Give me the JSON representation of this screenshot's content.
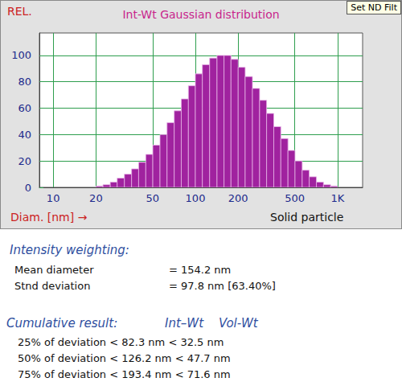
{
  "chart_data": {
    "type": "histogram",
    "title": "Int-Wt Gaussian distribution",
    "xlabel": "Diam. [nm] →",
    "ylabel": "REL.",
    "annotations": [
      "Solid particle"
    ],
    "bins": [
      20.0,
      22.4,
      25.2,
      28.2,
      31.7,
      35.6,
      39.9,
      44.8,
      50.2,
      56.4,
      63.2,
      71.0,
      79.6,
      89.3,
      100,
      112,
      126,
      142,
      159,
      178,
      200,
      224,
      252,
      283,
      317,
      356,
      399,
      448,
      502,
      564,
      632,
      710,
      796,
      893,
      1000
    ],
    "values": [
      1,
      2,
      4,
      7,
      10,
      14,
      19,
      25,
      32,
      40,
      49,
      58,
      67,
      77,
      86,
      93,
      98,
      100,
      100,
      97,
      91,
      84,
      75,
      66,
      56,
      46,
      37,
      28,
      20,
      13,
      8,
      4,
      2,
      1
    ],
    "color": "#a0229f",
    "log": "x",
    "xlim": [
      8,
      1500
    ],
    "xticks": [
      10,
      20,
      50,
      100,
      200,
      500,
      {
        "value": 1000,
        "label": "1K"
      }
    ],
    "ylim": [
      0,
      117
    ],
    "yticks": [
      0,
      20,
      40,
      60,
      80,
      100
    ],
    "grid": true
  },
  "button": "Set ND Filt",
  "intensity_weighting": {
    "heading": "Intensity weighting:",
    "rows": [
      [
        "Mean diameter",
        "= 154.2 nm"
      ],
      [
        "Stnd deviation",
        "= 97.8 nm [63.40%]"
      ]
    ]
  },
  "cumulative_result": {
    "heading": "Cumulative result:",
    "columns": [
      "Int–Wt",
      "Vol-Wt"
    ],
    "rows": [
      [
        "25% of deviation",
        "< 82.3 nm",
        "< 32.5 nm"
      ],
      [
        "50% of deviation",
        "< 126.2 nm",
        "< 47.7 nm"
      ],
      [
        "75% of deviation",
        "< 193.4 nm",
        "< 71.6 nm"
      ]
    ]
  }
}
